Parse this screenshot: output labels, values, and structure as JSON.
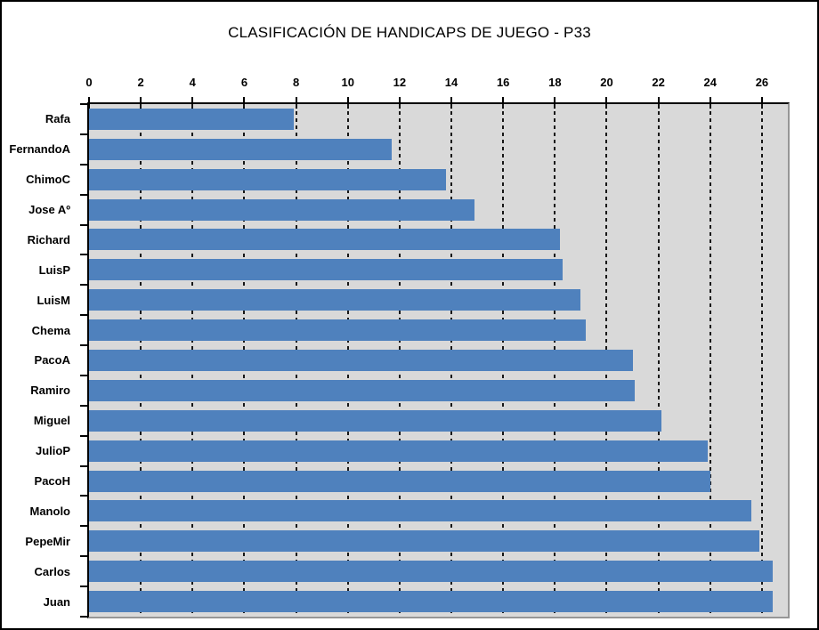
{
  "chart_data": {
    "type": "bar",
    "orientation": "horizontal",
    "title": "CLASIFICACIÓN DE HANDICAPS DE JUEGO - P33",
    "categories": [
      "Rafa",
      "FernandoA",
      "ChimoC",
      "Jose Aº",
      "Richard",
      "LuisP",
      "LuisM",
      "Chema",
      "PacoA",
      "Ramiro",
      "Miguel",
      "JulioP",
      "PacoH",
      "Manolo",
      "PepeMir",
      "Carlos",
      "Juan"
    ],
    "values": [
      7.9,
      11.7,
      13.8,
      14.9,
      18.2,
      18.3,
      19.0,
      19.2,
      21.0,
      21.1,
      22.1,
      23.9,
      24.0,
      25.6,
      25.9,
      26.4,
      26.4
    ],
    "axis_ticks": [
      0,
      2,
      4,
      6,
      8,
      10,
      12,
      14,
      16,
      18,
      20,
      22,
      24,
      26
    ],
    "xlim": [
      0,
      27
    ],
    "xlabel": "",
    "ylabel": "",
    "grid": true,
    "legend": false,
    "colors": {
      "bar": "#4F81BD",
      "plot_background": "#D9D9D9",
      "chart_background": "#FFFFFF",
      "gridline": "#161616",
      "axis_line": "#000000",
      "plot_border": "#969696",
      "chart_border": "#000000",
      "text": "#000000"
    }
  }
}
